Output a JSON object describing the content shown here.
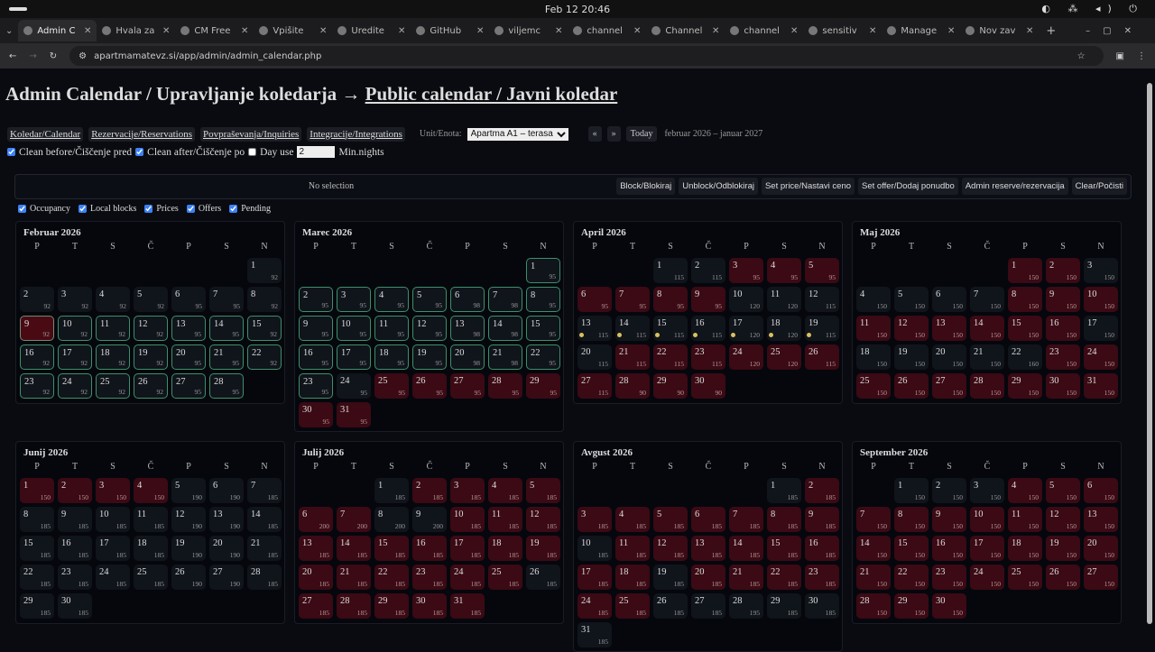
{
  "system": {
    "clock": "Feb 12  20:46"
  },
  "browser": {
    "tabs": [
      "Admin C",
      "Hvala za",
      "CM Free",
      "Vpišite",
      "Uredite",
      "GitHub",
      "viljemc",
      "channel",
      "Channel",
      "channel",
      "sensitiv",
      "Manage",
      "Nov zav"
    ],
    "url": "apartmamatevz.si/app/admin/admin_calendar.php"
  },
  "page": {
    "title": "Admin Calendar / Upravljanje koledarja →",
    "public_link": "Public calendar / Javni koledar",
    "nav": [
      "Koledar/Calendar",
      "Rezervacije/Reservations",
      "Povpraševanja/Inquiries",
      "Integracije/Integrations"
    ],
    "unit_label": "Unit/Enota:",
    "unit_value": "Apartma A1 – terasa",
    "prev": "«",
    "next": "»",
    "today": "Today",
    "range": "februar 2026 – januar 2027",
    "clean_before": "Clean before/Čiščenje pred",
    "clean_after": "Clean after/Čiščenje po",
    "day_use": "Day use",
    "min_nights_value": "2",
    "min_nights_label": "Min.nights",
    "clean_before_checked": true,
    "clean_after_checked": true,
    "day_use_checked": false
  },
  "action_bar": {
    "selection": "No selection",
    "actions": [
      "Block/Blokiraj",
      "Unblock/Odblokiraj",
      "Set price/Nastavi ceno",
      "Set offer/Dodaj ponudbo",
      "Admin reserve/rezervacija",
      "Clear/Počisti"
    ]
  },
  "filters": [
    {
      "label": "Occupancy",
      "checked": true
    },
    {
      "label": "Local blocks",
      "checked": true
    },
    {
      "label": "Prices",
      "checked": true
    },
    {
      "label": "Offers",
      "checked": true
    },
    {
      "label": "Pending",
      "checked": true
    }
  ],
  "weekdays": [
    "P",
    "T",
    "S",
    "Č",
    "P",
    "S",
    "N"
  ],
  "colors": {
    "booked": "#3b0a14",
    "offer_outline": "#3f8f6a",
    "pending_dot": "#d8c060",
    "free": "#10141b"
  },
  "legend_status": {
    "": "free",
    "b": "booked",
    "g": "offer",
    "bg": "booked+offer",
    "d": "pending"
  },
  "months": [
    {
      "title": "Februar 2026",
      "offset": 6,
      "prices": [
        92,
        92,
        92,
        92,
        92,
        95,
        95,
        92,
        92,
        92,
        92,
        92,
        95,
        95,
        92,
        92,
        92,
        92,
        92,
        95,
        95,
        92,
        92,
        92,
        92,
        92,
        95,
        95
      ],
      "status": [
        "",
        "",
        "",
        "",
        "",
        "",
        "",
        "",
        "bg",
        "g",
        "g",
        "g",
        "g",
        "g",
        "g",
        "g",
        "g",
        "g",
        "g",
        "g",
        "g",
        "g",
        "g",
        "g",
        "g",
        "g",
        "g",
        "g"
      ]
    },
    {
      "title": "Marec 2026",
      "offset": 6,
      "prices": [
        95,
        95,
        95,
        95,
        95,
        98,
        98,
        95,
        95,
        95,
        95,
        95,
        98,
        98,
        95,
        95,
        95,
        95,
        95,
        98,
        98,
        95,
        95,
        95,
        95,
        95,
        95,
        95,
        95,
        95,
        95
      ],
      "status": [
        "g",
        "g",
        "g",
        "g",
        "g",
        "g",
        "g",
        "g",
        "g",
        "g",
        "g",
        "g",
        "g",
        "g",
        "g",
        "g",
        "g",
        "g",
        "g",
        "g",
        "g",
        "g",
        "g",
        "",
        "b",
        "b",
        "b",
        "b",
        "b",
        "b",
        "b"
      ]
    },
    {
      "title": "April 2026",
      "offset": 2,
      "prices": [
        115,
        115,
        95,
        95,
        95,
        95,
        95,
        95,
        95,
        120,
        120,
        115,
        115,
        115,
        115,
        115,
        120,
        120,
        115,
        115,
        115,
        115,
        115,
        120,
        120,
        115,
        115,
        90,
        90,
        90
      ],
      "status": [
        "",
        "",
        "b",
        "b",
        "b",
        "b",
        "b",
        "b",
        "b",
        "",
        "",
        "",
        "d",
        "d",
        "d",
        "d",
        "d",
        "d",
        "d",
        "",
        "b",
        "b",
        "b",
        "b",
        "b",
        "b",
        "b",
        "b",
        "b",
        "b"
      ]
    },
    {
      "title": "Maj 2026",
      "offset": 4,
      "prices": [
        150,
        150,
        150,
        150,
        150,
        150,
        150,
        150,
        150,
        150,
        150,
        150,
        150,
        150,
        150,
        150,
        150,
        150,
        150,
        150,
        150,
        160,
        150,
        150,
        150,
        150,
        150,
        150,
        150,
        150,
        150
      ],
      "status": [
        "b",
        "b",
        "",
        "",
        "",
        "",
        "",
        "b",
        "b",
        "b",
        "b",
        "b",
        "b",
        "b",
        "b",
        "b",
        "",
        "",
        "",
        "",
        "",
        "",
        "b",
        "b",
        "b",
        "b",
        "b",
        "b",
        "b",
        "b",
        "b"
      ]
    },
    {
      "title": "Junij 2026",
      "offset": 0,
      "prices": [
        150,
        150,
        150,
        150,
        190,
        190,
        185,
        185,
        185,
        185,
        185,
        190,
        190,
        185,
        185,
        185,
        185,
        185,
        190,
        190,
        185,
        185,
        185,
        185,
        185,
        190,
        190,
        185,
        185,
        185
      ],
      "status": [
        "b",
        "b",
        "b",
        "b",
        "",
        "",
        "",
        "",
        "",
        "",
        "",
        "",
        "",
        "",
        "",
        "",
        "",
        "",
        "",
        "",
        "",
        "",
        "",
        "",
        "",
        "",
        "",
        "",
        "",
        ""
      ]
    },
    {
      "title": "Julij 2026",
      "offset": 2,
      "prices": [
        185,
        185,
        185,
        185,
        185,
        200,
        200,
        200,
        200,
        185,
        185,
        185,
        185,
        185,
        185,
        185,
        185,
        185,
        185,
        185,
        185,
        185,
        185,
        185,
        185,
        185,
        185,
        185,
        185,
        185,
        185
      ],
      "status": [
        "",
        "b",
        "b",
        "b",
        "b",
        "b",
        "b",
        "",
        "",
        "b",
        "b",
        "b",
        "b",
        "b",
        "b",
        "b",
        "b",
        "b",
        "b",
        "b",
        "b",
        "b",
        "b",
        "b",
        "b",
        "",
        "b",
        "b",
        "b",
        "b",
        "b"
      ]
    },
    {
      "title": "Avgust 2026",
      "offset": 5,
      "prices": [
        185,
        185,
        185,
        185,
        185,
        185,
        185,
        185,
        185,
        185,
        185,
        185,
        185,
        185,
        185,
        185,
        185,
        185,
        185,
        185,
        185,
        185,
        185,
        185,
        185,
        185,
        185,
        195,
        185,
        185,
        185
      ],
      "status": [
        "",
        "b",
        "b",
        "b",
        "b",
        "b",
        "b",
        "b",
        "b",
        "",
        "b",
        "b",
        "b",
        "b",
        "b",
        "b",
        "b",
        "b",
        "",
        "b",
        "b",
        "b",
        "b",
        "b",
        "b",
        "",
        "",
        "",
        "",
        "",
        ""
      ]
    },
    {
      "title": "September 2026",
      "offset": 1,
      "prices": [
        150,
        150,
        150,
        150,
        150,
        150,
        150,
        150,
        150,
        150,
        150,
        150,
        150,
        150,
        150,
        150,
        150,
        150,
        150,
        150,
        150,
        150,
        150,
        150,
        150,
        150,
        150,
        150,
        150,
        150
      ],
      "status": [
        "",
        "",
        "",
        "b",
        "b",
        "b",
        "b",
        "b",
        "b",
        "b",
        "b",
        "b",
        "b",
        "b",
        "b",
        "b",
        "b",
        "b",
        "b",
        "b",
        "b",
        "b",
        "b",
        "b",
        "b",
        "b",
        "b",
        "b",
        "b",
        "b"
      ]
    }
  ]
}
